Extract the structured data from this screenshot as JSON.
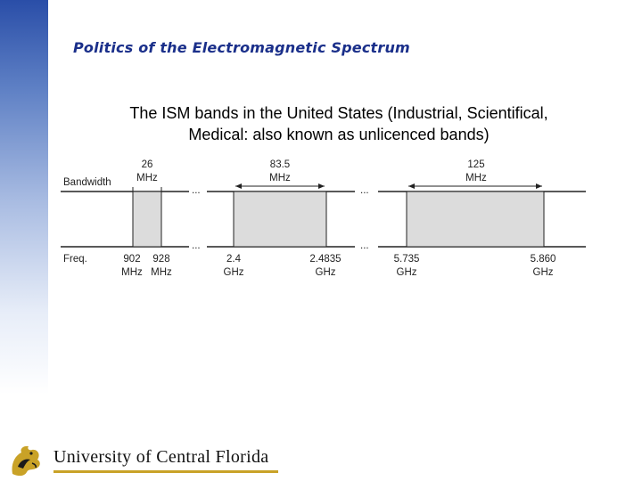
{
  "slide": {
    "title": "Politics of the Electromagnetic Spectrum",
    "subtitle_line1": "The ISM bands in the United States (Industrial, Scientifical,",
    "subtitle_line2": "Medical: also known as unlicenced bands)"
  },
  "diagram": {
    "row_label_bandwidth": "Bandwidth",
    "row_label_freq": "Freq.",
    "ellipsis": "...",
    "bands": [
      {
        "bandwidth_value": "26",
        "bandwidth_unit": "MHz",
        "start_value": "902",
        "start_unit": "MHz",
        "end_value": "928",
        "end_unit": "MHz"
      },
      {
        "bandwidth_value": "83.5",
        "bandwidth_unit": "MHz",
        "start_value": "2.4",
        "start_unit": "GHz",
        "end_value": "2.4835",
        "end_unit": "GHz"
      },
      {
        "bandwidth_value": "125",
        "bandwidth_unit": "MHz",
        "start_value": "5.735",
        "start_unit": "GHz",
        "end_value": "5.860",
        "end_unit": "GHz"
      }
    ]
  },
  "footer": {
    "university_name": "University of Central Florida"
  },
  "colors": {
    "title": "#1a2f8a",
    "band_fill": "#dcdcdc",
    "logo_accent": "#c9a227"
  }
}
